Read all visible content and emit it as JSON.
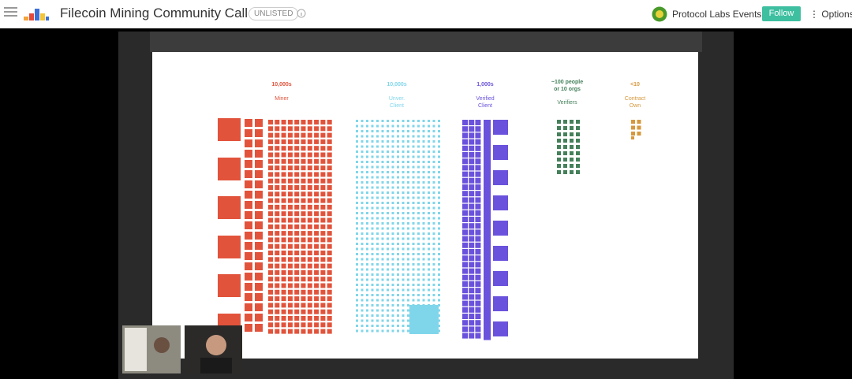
{
  "header": {
    "title": "Filecoin Mining Community Call",
    "badge": "UNLISTED",
    "channel": "Protocol Labs Events",
    "follow": "Follow",
    "options": "Options"
  },
  "slide": {
    "groups": [
      {
        "count": "10,000s",
        "label": [
          "Miner"
        ],
        "color": "#e2533b"
      },
      {
        "count": "10,000s",
        "label": [
          "Unver.",
          "Client"
        ],
        "color": "#7fd6ea"
      },
      {
        "count": "1,000s",
        "label": [
          "Verified",
          "Client"
        ],
        "color": "#6b52dc"
      },
      {
        "count": [
          "~100 people",
          "or 10 orgs"
        ],
        "label": [
          "Verifiers"
        ],
        "color": "#44805a"
      },
      {
        "count": "<10",
        "label": [
          "Contract",
          "Own"
        ],
        "color": "#d6983e"
      }
    ]
  }
}
